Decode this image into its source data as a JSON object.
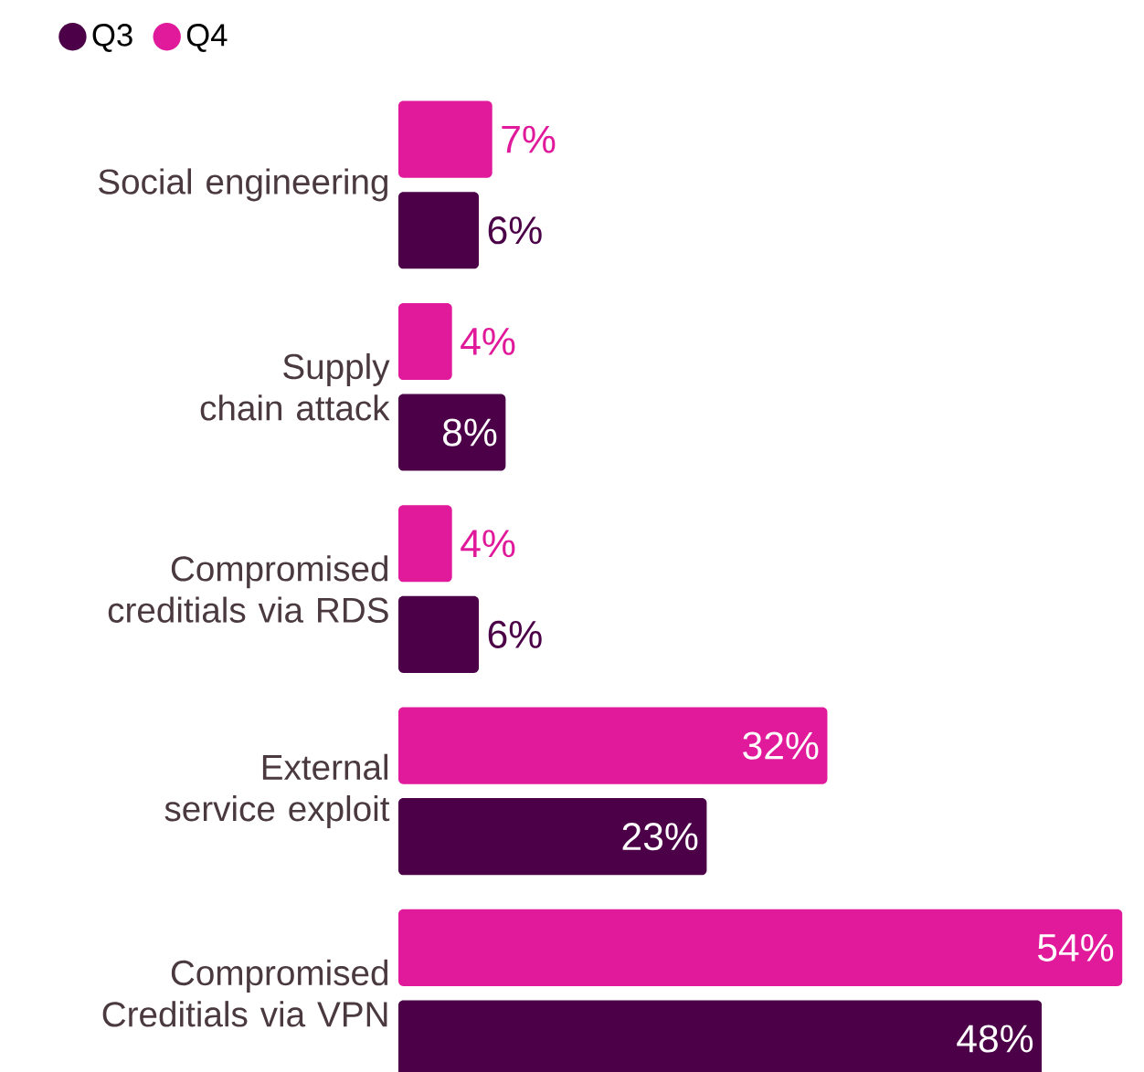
{
  "chart_data": {
    "type": "bar",
    "orientation": "horizontal",
    "legend": "top left",
    "categories": [
      "Social engineering",
      "Supply chain attack",
      "Compromised creditials via RDS",
      "External service exploit",
      "Compromised Creditials via VPN"
    ],
    "series": [
      {
        "name": "Q3",
        "color": "#4b0048",
        "values": [
          6,
          8,
          6,
          23,
          48
        ],
        "value_labels": [
          "6%",
          "8%",
          "6%",
          "23%",
          "48%"
        ]
      },
      {
        "name": "Q4",
        "color": "#e01a9b",
        "values": [
          7,
          4,
          4,
          32,
          54
        ],
        "value_labels": [
          "7%",
          "4%",
          "4%",
          "32%",
          "54%"
        ]
      }
    ]
  }
}
